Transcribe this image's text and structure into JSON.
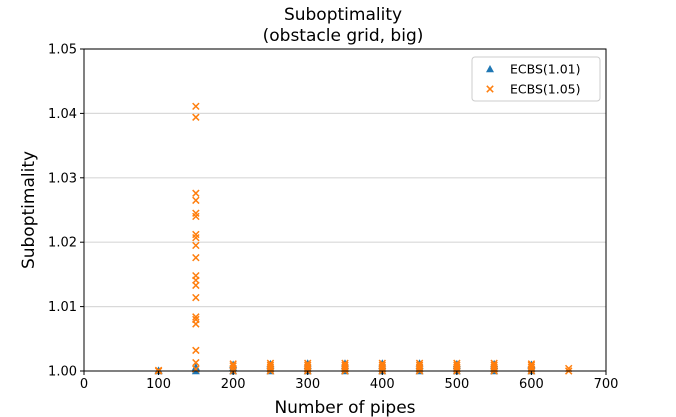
{
  "chart_data": {
    "type": "scatter",
    "title": "Suboptimality",
    "subtitle": "(obstacle grid, big)",
    "xlabel": "Number of pipes",
    "ylabel": "Suboptimality",
    "xlim": [
      0,
      700
    ],
    "ylim": [
      1.0,
      1.05
    ],
    "x_ticks": [
      0,
      100,
      200,
      300,
      400,
      500,
      600,
      700
    ],
    "y_ticks": [
      1.0,
      1.01,
      1.02,
      1.03,
      1.04,
      1.05
    ],
    "x_tick_labels": [
      "0",
      "100",
      "200",
      "300",
      "400",
      "500",
      "600",
      "700"
    ],
    "y_tick_labels": [
      "1.00",
      "1.01",
      "1.02",
      "1.03",
      "1.04",
      "1.05"
    ],
    "grid": "horizontal",
    "legend_position": "top-right",
    "series": [
      {
        "name": "ECBS(1.01)",
        "marker": "triangle",
        "color": "#1f77b4",
        "points": [
          [
            100,
            1.0
          ],
          [
            100,
            1.0001
          ],
          [
            150,
            1.0
          ],
          [
            150,
            1.0003
          ],
          [
            150,
            1.0006
          ],
          [
            200,
            1.0
          ],
          [
            200,
            1.0005
          ],
          [
            200,
            1.001
          ],
          [
            250,
            1.0
          ],
          [
            250,
            1.0004
          ],
          [
            250,
            1.0008
          ],
          [
            250,
            1.0011
          ],
          [
            300,
            1.0
          ],
          [
            300,
            1.0004
          ],
          [
            300,
            1.0008
          ],
          [
            300,
            1.0012
          ],
          [
            350,
            1.0
          ],
          [
            350,
            1.0004
          ],
          [
            350,
            1.0008
          ],
          [
            350,
            1.0012
          ],
          [
            400,
            1.0
          ],
          [
            400,
            1.0004
          ],
          [
            400,
            1.0008
          ],
          [
            400,
            1.0012
          ],
          [
            450,
            1.0
          ],
          [
            450,
            1.0004
          ],
          [
            450,
            1.0008
          ],
          [
            450,
            1.0012
          ],
          [
            500,
            1.0
          ],
          [
            500,
            1.0004
          ],
          [
            500,
            1.0008
          ],
          [
            500,
            1.0011
          ],
          [
            550,
            1.0
          ],
          [
            550,
            1.0004
          ],
          [
            550,
            1.0008
          ],
          [
            550,
            1.0011
          ],
          [
            600,
            1.0
          ],
          [
            600,
            1.0004
          ],
          [
            600,
            1.0008
          ],
          [
            600,
            1.001
          ]
        ]
      },
      {
        "name": "ECBS(1.05)",
        "marker": "x",
        "color": "#ff7f0e",
        "points": [
          [
            100,
            1.0
          ],
          [
            100,
            1.0001
          ],
          [
            150,
            1.0411
          ],
          [
            150,
            1.0394
          ],
          [
            150,
            1.0276
          ],
          [
            150,
            1.0265
          ],
          [
            150,
            1.0245
          ],
          [
            150,
            1.024
          ],
          [
            150,
            1.0212
          ],
          [
            150,
            1.0207
          ],
          [
            150,
            1.0195
          ],
          [
            150,
            1.0176
          ],
          [
            150,
            1.0148
          ],
          [
            150,
            1.0141
          ],
          [
            150,
            1.0133
          ],
          [
            150,
            1.0114
          ],
          [
            150,
            1.0084
          ],
          [
            150,
            1.008
          ],
          [
            150,
            1.0073
          ],
          [
            150,
            1.0032
          ],
          [
            150,
            1.0013
          ],
          [
            150,
            1.0003
          ],
          [
            200,
            1.0
          ],
          [
            200,
            1.0004
          ],
          [
            200,
            1.0008
          ],
          [
            200,
            1.0011
          ],
          [
            250,
            1.0
          ],
          [
            250,
            1.0003
          ],
          [
            250,
            1.0006
          ],
          [
            250,
            1.0009
          ],
          [
            250,
            1.0012
          ],
          [
            300,
            1.0
          ],
          [
            300,
            1.0003
          ],
          [
            300,
            1.0006
          ],
          [
            300,
            1.0009
          ],
          [
            300,
            1.0012
          ],
          [
            350,
            1.0
          ],
          [
            350,
            1.0003
          ],
          [
            350,
            1.0006
          ],
          [
            350,
            1.0009
          ],
          [
            350,
            1.0012
          ],
          [
            400,
            1.0
          ],
          [
            400,
            1.0003
          ],
          [
            400,
            1.0006
          ],
          [
            400,
            1.0009
          ],
          [
            400,
            1.0012
          ],
          [
            450,
            1.0
          ],
          [
            450,
            1.0003
          ],
          [
            450,
            1.0006
          ],
          [
            450,
            1.0009
          ],
          [
            450,
            1.0012
          ],
          [
            500,
            1.0
          ],
          [
            500,
            1.0003
          ],
          [
            500,
            1.0006
          ],
          [
            500,
            1.0009
          ],
          [
            500,
            1.0012
          ],
          [
            550,
            1.0
          ],
          [
            550,
            1.0003
          ],
          [
            550,
            1.0006
          ],
          [
            550,
            1.0009
          ],
          [
            550,
            1.0012
          ],
          [
            600,
            1.0
          ],
          [
            600,
            1.0003
          ],
          [
            600,
            1.0006
          ],
          [
            600,
            1.0009
          ],
          [
            600,
            1.0011
          ],
          [
            650,
            1.0
          ],
          [
            650,
            1.0004
          ]
        ]
      }
    ]
  }
}
